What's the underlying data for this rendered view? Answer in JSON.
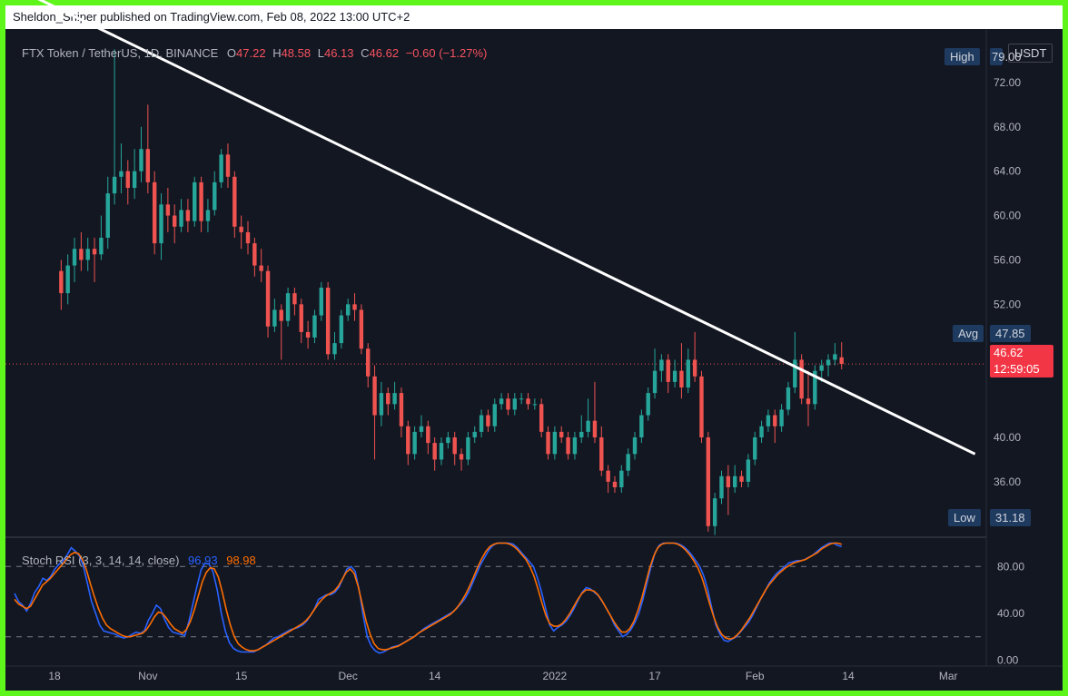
{
  "header": {
    "publisher_line": "Sheldon_Sniper published on TradingView.com, Feb 08, 2022 13:00 UTC+2"
  },
  "symbol_legend": {
    "title": "FTX Token / TetherUS, 1D, BINANCE",
    "open_label": "O",
    "open": "47.22",
    "high_label": "H",
    "high": "48.58",
    "low_label": "L",
    "low": "46.13",
    "close_label": "C",
    "close": "46.62",
    "change": "−0.60 (−1.27%)"
  },
  "price_scale": {
    "currency": "USDT",
    "high_label": "High",
    "high_value": "79.00",
    "avg_label": "Avg",
    "avg_value": "47.85",
    "last_price": "46.62",
    "countdown": "12:59:05",
    "low_label": "Low",
    "low_value": "31.18"
  },
  "indicator": {
    "name": "Stoch RSI (3, 3, 14, 14, close)",
    "k_value": "96.93",
    "d_value": "98.98"
  },
  "colors": {
    "background": "#131722",
    "up": "#26a69a",
    "down": "#ef5350",
    "trendline": "#ffffff",
    "k_line": "#2962ff",
    "d_line": "#ff6d00",
    "frame": "#5ef51b"
  },
  "chart_data": {
    "type": "candlestick",
    "price_axis": {
      "ticks": [
        "72.00",
        "68.00",
        "64.00",
        "60.00",
        "56.00",
        "52.00",
        "40.00",
        "36.00"
      ],
      "tick_values": [
        72,
        68,
        64,
        60,
        56,
        52,
        40,
        36
      ],
      "ylim": [
        31,
        76
      ]
    },
    "rsi_axis": {
      "ticks": [
        "80.00",
        "40.00",
        "0.00"
      ],
      "tick_values": [
        80,
        40,
        0
      ],
      "ylim": [
        -5,
        105
      ],
      "bands": [
        80,
        20
      ]
    },
    "time_axis": {
      "labels": [
        "18",
        "Nov",
        "15",
        "Dec",
        "14",
        "2022",
        "17",
        "Feb",
        "14",
        "Mar"
      ],
      "label_days": [
        0,
        14,
        28,
        44,
        57,
        75,
        90,
        105,
        119,
        134
      ]
    },
    "last_day": 118,
    "current_price": 46.62,
    "trendline": [
      [
        -4,
        80
      ],
      [
        138,
        38.5
      ]
    ],
    "candles": [
      [
        55.0,
        53.0,
        56.0,
        51.5
      ],
      [
        53.0,
        55.5,
        56.5,
        52.0
      ],
      [
        55.5,
        57.0,
        58.0,
        54.0
      ],
      [
        57.0,
        56.0,
        58.5,
        55.0
      ],
      [
        56.0,
        57.0,
        58.0,
        55.0
      ],
      [
        57.0,
        56.5,
        58.0,
        54.0
      ],
      [
        56.5,
        58.0,
        60.0,
        56.0
      ],
      [
        58.0,
        62.0,
        63.5,
        57.0
      ],
      [
        62.0,
        63.5,
        75.0,
        61.0
      ],
      [
        63.5,
        64.0,
        66.5,
        62.0
      ],
      [
        64.0,
        62.5,
        65.0,
        61.0
      ],
      [
        62.5,
        64.0,
        66.0,
        61.5
      ],
      [
        64.0,
        66.0,
        68.0,
        63.0
      ],
      [
        66.0,
        63.0,
        70.0,
        62.0
      ],
      [
        63.0,
        57.5,
        64.0,
        56.5
      ],
      [
        57.5,
        61.0,
        62.0,
        56.0
      ],
      [
        61.0,
        60.0,
        62.5,
        58.5
      ],
      [
        60.0,
        59.0,
        61.0,
        57.5
      ],
      [
        59.0,
        60.5,
        61.5,
        58.5
      ],
      [
        60.5,
        59.5,
        61.5,
        58.5
      ],
      [
        59.5,
        63.0,
        63.5,
        59.0
      ],
      [
        63.0,
        59.5,
        63.5,
        58.5
      ],
      [
        59.5,
        60.5,
        61.5,
        58.5
      ],
      [
        60.5,
        63.0,
        64.0,
        60.0
      ],
      [
        63.0,
        65.5,
        66.0,
        62.5
      ],
      [
        65.5,
        63.5,
        66.5,
        62.5
      ],
      [
        63.5,
        59.0,
        64.0,
        58.0
      ],
      [
        59.0,
        58.5,
        60.0,
        57.0
      ],
      [
        58.5,
        57.5,
        59.5,
        56.5
      ],
      [
        57.5,
        55.5,
        58.0,
        54.5
      ],
      [
        55.5,
        55.0,
        57.0,
        54.0
      ],
      [
        55.0,
        50.0,
        55.5,
        49.0
      ],
      [
        50.0,
        51.5,
        52.5,
        49.5
      ],
      [
        51.5,
        50.5,
        52.0,
        47.0
      ],
      [
        50.5,
        53.0,
        53.5,
        50.0
      ],
      [
        53.0,
        52.0,
        53.5,
        51.0
      ],
      [
        52.0,
        49.5,
        52.5,
        48.5
      ],
      [
        49.5,
        49.0,
        50.5,
        48.0
      ],
      [
        49.0,
        51.0,
        51.5,
        48.5
      ],
      [
        51.0,
        53.5,
        54.0,
        50.5
      ],
      [
        53.5,
        47.5,
        54.0,
        47.0
      ],
      [
        47.5,
        48.5,
        49.5,
        47.0
      ],
      [
        48.5,
        51.0,
        51.5,
        48.0
      ],
      [
        51.0,
        52.0,
        52.5,
        50.5
      ],
      [
        52.0,
        51.5,
        53.0,
        50.5
      ],
      [
        51.5,
        48.0,
        52.0,
        47.5
      ],
      [
        48.0,
        45.5,
        48.5,
        44.5
      ],
      [
        45.5,
        42.0,
        46.5,
        38.0
      ],
      [
        42.0,
        44.0,
        45.0,
        41.0
      ],
      [
        44.0,
        43.0,
        44.5,
        42.0
      ],
      [
        43.0,
        44.0,
        45.0,
        42.5
      ],
      [
        44.0,
        41.0,
        44.5,
        40.0
      ],
      [
        41.0,
        38.5,
        41.5,
        37.5
      ],
      [
        38.5,
        40.5,
        41.0,
        38.0
      ],
      [
        40.5,
        41.0,
        42.0,
        40.0
      ],
      [
        41.0,
        39.5,
        41.5,
        38.5
      ],
      [
        39.5,
        38.0,
        40.0,
        37.0
      ],
      [
        38.0,
        39.5,
        40.0,
        37.5
      ],
      [
        39.5,
        40.0,
        40.5,
        39.0
      ],
      [
        40.0,
        38.5,
        40.5,
        37.5
      ],
      [
        38.5,
        38.0,
        39.0,
        37.0
      ],
      [
        38.0,
        40.0,
        40.5,
        37.5
      ],
      [
        40.0,
        40.5,
        41.0,
        39.5
      ],
      [
        40.5,
        42.0,
        42.5,
        40.0
      ],
      [
        42.0,
        41.0,
        42.5,
        40.5
      ],
      [
        41.0,
        43.0,
        43.5,
        40.5
      ],
      [
        43.0,
        43.5,
        44.0,
        42.5
      ],
      [
        43.5,
        42.5,
        44.0,
        42.0
      ],
      [
        42.5,
        43.5,
        44.0,
        42.0
      ],
      [
        43.5,
        43.5,
        44.0,
        43.0
      ],
      [
        43.5,
        43.0,
        44.0,
        42.5
      ],
      [
        43.0,
        43.0,
        43.5,
        42.5
      ],
      [
        43.0,
        40.5,
        43.5,
        40.0
      ],
      [
        40.5,
        38.5,
        41.0,
        38.0
      ],
      [
        38.5,
        40.5,
        41.0,
        38.0
      ],
      [
        40.5,
        40.0,
        41.0,
        39.5
      ],
      [
        40.0,
        38.5,
        40.5,
        38.0
      ],
      [
        38.5,
        40.0,
        40.5,
        38.0
      ],
      [
        40.0,
        40.5,
        42.0,
        39.5
      ],
      [
        40.5,
        41.5,
        43.5,
        40.0
      ],
      [
        41.5,
        40.0,
        45.0,
        39.5
      ],
      [
        40.0,
        37.0,
        41.0,
        36.5
      ],
      [
        37.0,
        36.0,
        37.5,
        35.0
      ],
      [
        36.0,
        35.5,
        36.5,
        35.0
      ],
      [
        35.5,
        37.0,
        37.5,
        35.0
      ],
      [
        37.0,
        38.5,
        39.0,
        36.5
      ],
      [
        38.5,
        40.0,
        40.5,
        38.0
      ],
      [
        40.0,
        42.0,
        42.5,
        39.5
      ],
      [
        42.0,
        44.0,
        44.5,
        41.5
      ],
      [
        44.0,
        46.0,
        48.0,
        43.5
      ],
      [
        46.0,
        47.0,
        47.5,
        45.0
      ],
      [
        47.0,
        45.0,
        47.5,
        44.0
      ],
      [
        45.0,
        46.0,
        47.0,
        44.5
      ],
      [
        46.0,
        44.5,
        48.5,
        43.5
      ],
      [
        44.5,
        47.0,
        48.0,
        44.0
      ],
      [
        47.0,
        45.5,
        49.5,
        45.0
      ],
      [
        45.5,
        40.0,
        46.0,
        39.5
      ],
      [
        40.0,
        32.0,
        40.5,
        31.5
      ],
      [
        32.0,
        34.5,
        35.0,
        31.2
      ],
      [
        34.5,
        36.5,
        37.0,
        34.0
      ],
      [
        36.5,
        35.5,
        37.5,
        33.0
      ],
      [
        35.5,
        36.5,
        37.5,
        35.0
      ],
      [
        36.5,
        36.0,
        37.0,
        35.5
      ],
      [
        36.0,
        38.0,
        38.5,
        35.5
      ],
      [
        38.0,
        40.0,
        40.5,
        37.5
      ],
      [
        40.0,
        41.0,
        41.5,
        39.5
      ],
      [
        41.0,
        42.0,
        42.5,
        40.5
      ],
      [
        42.0,
        41.0,
        42.5,
        39.5
      ],
      [
        41.0,
        42.5,
        43.0,
        40.5
      ],
      [
        42.5,
        44.5,
        45.0,
        42.0
      ],
      [
        44.5,
        47.0,
        49.5,
        44.0
      ],
      [
        47.0,
        43.5,
        47.5,
        43.0
      ],
      [
        43.5,
        43.0,
        46.0,
        41.0
      ],
      [
        43.0,
        46.0,
        46.5,
        42.5
      ],
      [
        46.0,
        46.5,
        47.0,
        45.0
      ],
      [
        46.5,
        47.0,
        47.5,
        45.5
      ],
      [
        47.0,
        47.5,
        48.5,
        46.5
      ],
      [
        47.22,
        46.62,
        48.58,
        46.13
      ]
    ],
    "series": [
      {
        "values": [
          57,
          50,
          47,
          42,
          49,
          58,
          63,
          70,
          68,
          72,
          78,
          82,
          85,
          90,
          96,
          93,
          89,
          80,
          65,
          50,
          40,
          30,
          25,
          24,
          23,
          22,
          20,
          19,
          20,
          22,
          24,
          23,
          25,
          34,
          40,
          47,
          44,
          35,
          28,
          24,
          23,
          22,
          21,
          33,
          48,
          63,
          77,
          83,
          82,
          75,
          60,
          40,
          25,
          15,
          10,
          8,
          7,
          7,
          7,
          7,
          9,
          11,
          13,
          16,
          19,
          20,
          22,
          24,
          26,
          27,
          28,
          30,
          33,
          38,
          44,
          52,
          54,
          56,
          56,
          58,
          62,
          70,
          78,
          80,
          76,
          60,
          38,
          20,
          12,
          8,
          6,
          7,
          9,
          11,
          12,
          13,
          15,
          17,
          19,
          21,
          24,
          27,
          29,
          31,
          33,
          35,
          37,
          39,
          41,
          44,
          48,
          52,
          58,
          66,
          74,
          82,
          88,
          94,
          98,
          100,
          100,
          100,
          100,
          99,
          96,
          92,
          88,
          84,
          80,
          70,
          58,
          44,
          30,
          25,
          28,
          30,
          33,
          38,
          44,
          51,
          58,
          62,
          61,
          58,
          55,
          50,
          44,
          38,
          30,
          25,
          20,
          22,
          26,
          32,
          40,
          52,
          66,
          80,
          92,
          98,
          100,
          100,
          100,
          100,
          99,
          97,
          94,
          90,
          85,
          80,
          72,
          60,
          44,
          30,
          22,
          17,
          16,
          18,
          20,
          24,
          28,
          32,
          38,
          45,
          52,
          58,
          65,
          70,
          74,
          77,
          80,
          83,
          84,
          85,
          85,
          86,
          88,
          90,
          93,
          96,
          98,
          100,
          100,
          98,
          96.93
        ]
      },
      {
        "values": [
          52,
          48,
          46,
          44,
          46,
          52,
          58,
          64,
          67,
          70,
          74,
          78,
          82,
          86,
          90,
          92,
          91,
          86,
          77,
          65,
          54,
          44,
          36,
          30,
          27,
          25,
          23,
          21,
          20,
          20,
          21,
          22,
          23,
          26,
          31,
          37,
          41,
          40,
          36,
          31,
          27,
          25,
          23,
          26,
          33,
          43,
          55,
          67,
          75,
          79,
          78,
          71,
          58,
          43,
          30,
          20,
          14,
          11,
          9,
          8,
          8,
          9,
          11,
          13,
          15,
          17,
          19,
          21,
          23,
          25,
          27,
          29,
          31,
          34,
          38,
          43,
          48,
          52,
          55,
          57,
          59,
          63,
          69,
          75,
          78,
          74,
          63,
          48,
          33,
          22,
          14,
          10,
          9,
          9,
          10,
          11,
          12,
          14,
          16,
          18,
          20,
          23,
          25,
          27,
          29,
          31,
          33,
          35,
          37,
          39,
          42,
          46,
          51,
          57,
          64,
          72,
          80,
          87,
          93,
          97,
          99,
          100,
          100,
          100,
          99,
          97,
          94,
          90,
          86,
          80,
          72,
          61,
          49,
          38,
          31,
          29,
          29,
          31,
          35,
          40,
          46,
          52,
          57,
          60,
          60,
          59,
          56,
          51,
          45,
          39,
          33,
          28,
          24,
          24,
          27,
          33,
          42,
          53,
          66,
          79,
          89,
          96,
          99,
          100,
          100,
          100,
          99,
          97,
          94,
          90,
          85,
          79,
          71,
          60,
          48,
          37,
          28,
          22,
          19,
          18,
          19,
          22,
          26,
          31,
          36,
          42,
          48,
          54,
          60,
          65,
          69,
          73,
          76,
          79,
          81,
          83,
          84,
          85,
          86,
          88,
          90,
          92,
          95,
          97,
          99,
          100,
          100,
          98.98
        ]
      }
    ]
  }
}
